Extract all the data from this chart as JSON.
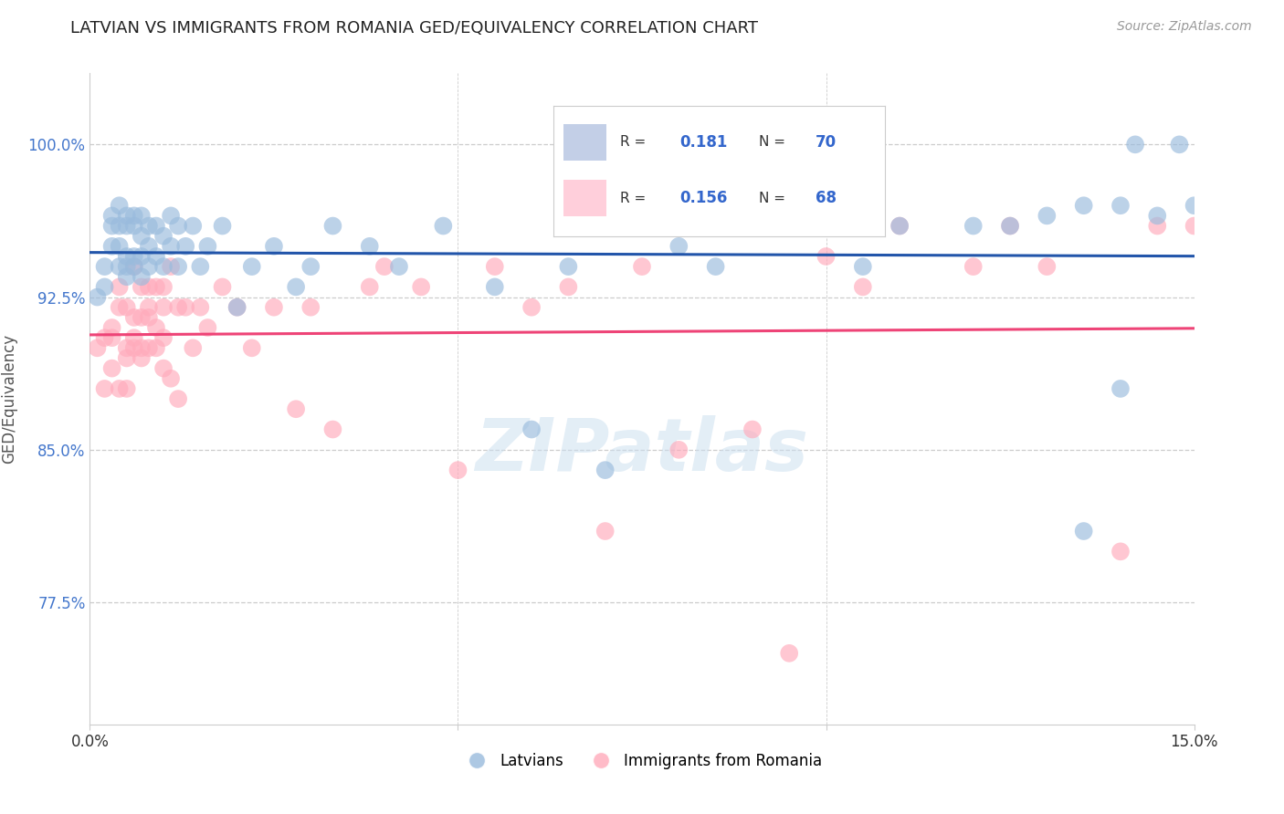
{
  "title": "LATVIAN VS IMMIGRANTS FROM ROMANIA GED/EQUIVALENCY CORRELATION CHART",
  "source": "Source: ZipAtlas.com",
  "ylabel": "GED/Equivalency",
  "ytick_vals": [
    0.775,
    0.85,
    0.925,
    1.0
  ],
  "ytick_labels": [
    "77.5%",
    "85.0%",
    "92.5%",
    "100.0%"
  ],
  "xlim": [
    0.0,
    0.15
  ],
  "ylim": [
    0.715,
    1.035
  ],
  "blue_color": "#99BBDD",
  "pink_color": "#FFAABB",
  "blue_line_color": "#2255AA",
  "pink_line_color": "#EE4477",
  "blue_fill": "#AABBDD",
  "pink_fill": "#FFBBCC",
  "watermark": "ZIPatlas",
  "latvian_x": [
    0.001,
    0.002,
    0.002,
    0.003,
    0.003,
    0.003,
    0.004,
    0.004,
    0.004,
    0.004,
    0.005,
    0.005,
    0.005,
    0.005,
    0.005,
    0.006,
    0.006,
    0.006,
    0.006,
    0.007,
    0.007,
    0.007,
    0.007,
    0.008,
    0.008,
    0.008,
    0.009,
    0.009,
    0.01,
    0.01,
    0.011,
    0.011,
    0.012,
    0.012,
    0.013,
    0.014,
    0.015,
    0.016,
    0.018,
    0.02,
    0.022,
    0.025,
    0.028,
    0.03,
    0.033,
    0.038,
    0.042,
    0.048,
    0.055,
    0.06,
    0.065,
    0.07,
    0.08,
    0.085,
    0.09,
    0.095,
    0.1,
    0.105,
    0.11,
    0.12,
    0.125,
    0.13,
    0.135,
    0.14,
    0.142,
    0.145,
    0.148,
    0.15,
    0.135,
    0.14
  ],
  "latvian_y": [
    0.925,
    0.94,
    0.93,
    0.96,
    0.95,
    0.965,
    0.94,
    0.95,
    0.96,
    0.97,
    0.935,
    0.94,
    0.945,
    0.96,
    0.965,
    0.94,
    0.945,
    0.96,
    0.965,
    0.935,
    0.945,
    0.955,
    0.965,
    0.94,
    0.95,
    0.96,
    0.945,
    0.96,
    0.94,
    0.955,
    0.95,
    0.965,
    0.94,
    0.96,
    0.95,
    0.96,
    0.94,
    0.95,
    0.96,
    0.92,
    0.94,
    0.95,
    0.93,
    0.94,
    0.96,
    0.95,
    0.94,
    0.96,
    0.93,
    0.86,
    0.94,
    0.84,
    0.95,
    0.94,
    0.96,
    0.96,
    0.96,
    0.94,
    0.96,
    0.96,
    0.96,
    0.965,
    0.97,
    0.97,
    1.0,
    0.965,
    1.0,
    0.97,
    0.81,
    0.88
  ],
  "romania_x": [
    0.001,
    0.002,
    0.002,
    0.003,
    0.003,
    0.004,
    0.004,
    0.005,
    0.005,
    0.005,
    0.006,
    0.006,
    0.006,
    0.007,
    0.007,
    0.007,
    0.008,
    0.008,
    0.008,
    0.009,
    0.009,
    0.01,
    0.01,
    0.011,
    0.012,
    0.013,
    0.014,
    0.015,
    0.016,
    0.018,
    0.02,
    0.022,
    0.025,
    0.028,
    0.03,
    0.033,
    0.038,
    0.04,
    0.045,
    0.05,
    0.055,
    0.06,
    0.065,
    0.07,
    0.075,
    0.08,
    0.09,
    0.095,
    0.1,
    0.105,
    0.11,
    0.12,
    0.125,
    0.13,
    0.14,
    0.145,
    0.15,
    0.003,
    0.004,
    0.005,
    0.006,
    0.007,
    0.008,
    0.009,
    0.01,
    0.01,
    0.011,
    0.012
  ],
  "romania_y": [
    0.9,
    0.905,
    0.88,
    0.89,
    0.91,
    0.88,
    0.92,
    0.895,
    0.9,
    0.92,
    0.9,
    0.915,
    0.94,
    0.895,
    0.915,
    0.93,
    0.9,
    0.915,
    0.93,
    0.91,
    0.93,
    0.905,
    0.93,
    0.94,
    0.92,
    0.92,
    0.9,
    0.92,
    0.91,
    0.93,
    0.92,
    0.9,
    0.92,
    0.87,
    0.92,
    0.86,
    0.93,
    0.94,
    0.93,
    0.84,
    0.94,
    0.92,
    0.93,
    0.81,
    0.94,
    0.85,
    0.86,
    0.75,
    0.945,
    0.93,
    0.96,
    0.94,
    0.96,
    0.94,
    0.8,
    0.96,
    0.96,
    0.905,
    0.93,
    0.88,
    0.905,
    0.9,
    0.92,
    0.9,
    0.92,
    0.89,
    0.885,
    0.875
  ]
}
